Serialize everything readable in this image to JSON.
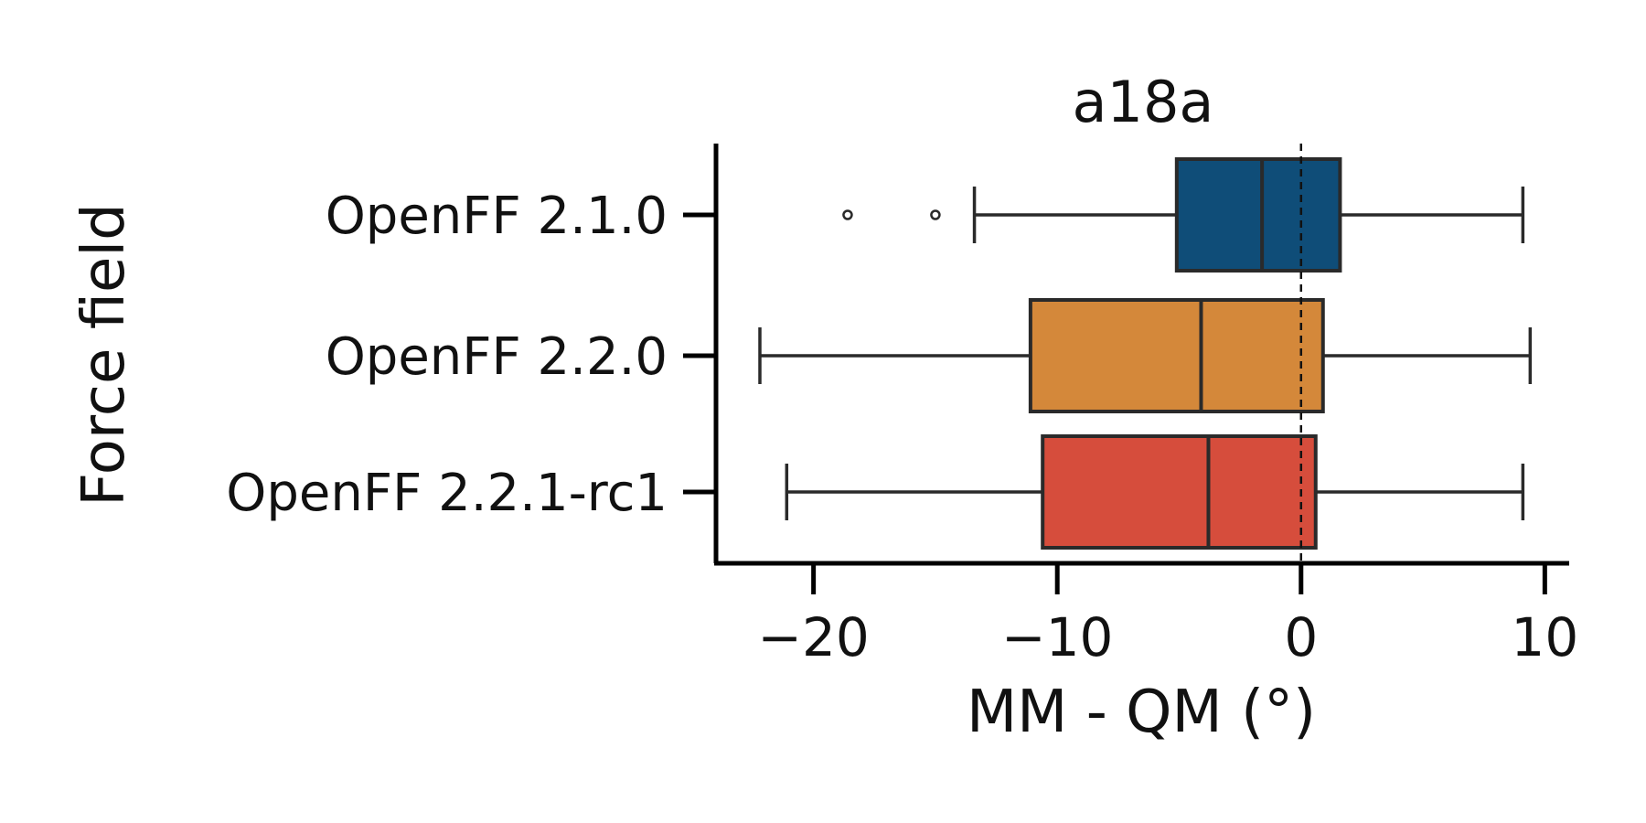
{
  "chart_data": {
    "type": "box",
    "orientation": "horizontal",
    "title": "a18a",
    "xlabel": "MM - QM (°)",
    "ylabel": "Force field",
    "xlim": [
      -24,
      11
    ],
    "xticks": [
      -20,
      -10,
      0,
      10
    ],
    "xtick_labels": [
      "−20",
      "−10",
      "0",
      "10"
    ],
    "reference_line": 0,
    "grid": false,
    "categories": [
      "OpenFF 2.1.0",
      "OpenFF 2.2.0",
      "OpenFF 2.2.1-rc1"
    ],
    "series": [
      {
        "category": "OpenFF 2.1.0",
        "color": "#0f4d78",
        "whisker_low": -13.4,
        "q1": -5.1,
        "median": -1.6,
        "q3": 1.6,
        "whisker_high": 9.1,
        "outliers": [
          -18.6,
          -15.0
        ]
      },
      {
        "category": "OpenFF 2.2.0",
        "color": "#d4883a",
        "whisker_low": -22.2,
        "q1": -11.1,
        "median": -4.1,
        "q3": 0.9,
        "whisker_high": 9.4,
        "outliers": []
      },
      {
        "category": "OpenFF 2.2.1-rc1",
        "color": "#d64d3c",
        "whisker_low": -21.1,
        "q1": -10.6,
        "median": -3.8,
        "q3": 0.6,
        "whisker_high": 9.1,
        "outliers": []
      }
    ]
  }
}
